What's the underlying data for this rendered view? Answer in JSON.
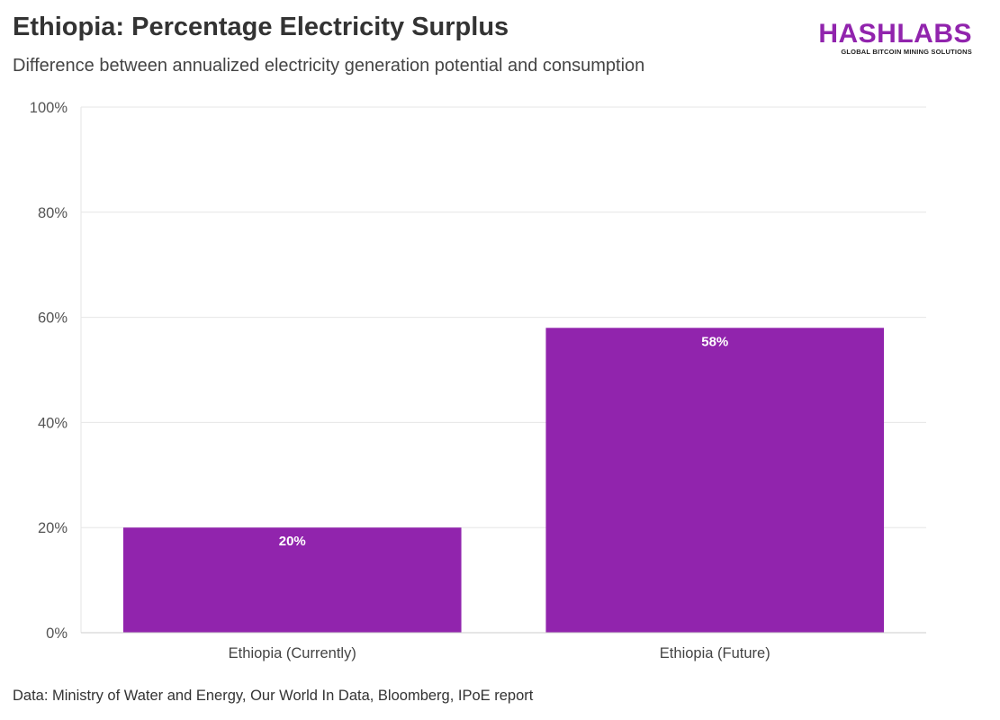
{
  "header": {
    "title": "Ethiopia: Percentage Electricity Surplus",
    "subtitle": "Difference between annualized electricity generation potential and consumption"
  },
  "logo": {
    "word": "HASHLABS",
    "tagline": "GLOBAL BITCOIN MINING SOLUTIONS"
  },
  "footer": {
    "source": "Data: Ministry of Water and Energy, Our World In Data, Bloomberg, IPoE report"
  },
  "colors": {
    "bar": "#9124ad",
    "brand": "#9124ad",
    "grid": "#e6e6e6",
    "axis": "#cccccc"
  },
  "chart_data": {
    "type": "bar",
    "title": "Ethiopia: Percentage Electricity Surplus",
    "subtitle": "Difference between annualized electricity generation potential and consumption",
    "categories": [
      "Ethiopia (Currently)",
      "Ethiopia (Future)"
    ],
    "values": [
      20,
      58
    ],
    "value_labels": [
      "20%",
      "58%"
    ],
    "xlabel": "",
    "ylabel": "",
    "ylim": [
      0,
      100
    ],
    "yticks": [
      0,
      20,
      40,
      60,
      80,
      100
    ],
    "ytick_labels": [
      "0%",
      "20%",
      "40%",
      "60%",
      "80%",
      "100%"
    ],
    "grid": true,
    "legend": "none"
  }
}
